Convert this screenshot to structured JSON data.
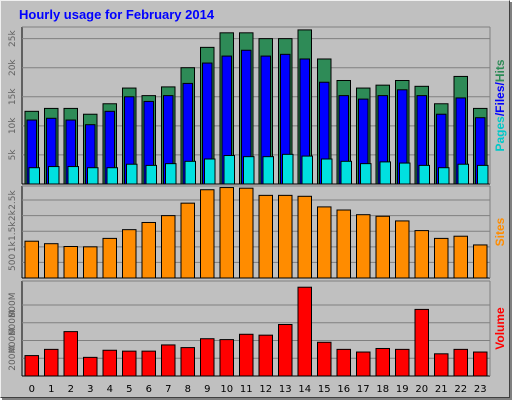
{
  "title": "Hourly usage for February 2014",
  "chart_data": [
    {
      "type": "bar",
      "panel": "hits-files-pages",
      "categories": [
        "0",
        "1",
        "2",
        "3",
        "4",
        "5",
        "6",
        "7",
        "8",
        "9",
        "10",
        "11",
        "12",
        "13",
        "14",
        "15",
        "16",
        "17",
        "18",
        "19",
        "20",
        "21",
        "22",
        "23"
      ],
      "ylim": [
        0,
        27000
      ],
      "yticks": [
        "5k",
        "10k",
        "15k",
        "20k",
        "25k"
      ],
      "legend": [
        "Pages",
        "/",
        "Files",
        "/",
        "Hits"
      ],
      "series": [
        {
          "name": "Hits",
          "color": "#2e8b57",
          "values": [
            12500,
            13000,
            13000,
            12000,
            13800,
            16500,
            15200,
            16700,
            20000,
            23500,
            26000,
            26000,
            25000,
            25000,
            26500,
            21500,
            17800,
            16500,
            17000,
            17800,
            16800,
            13800,
            18500,
            13000
          ]
        },
        {
          "name": "Files",
          "color": "#0000ff",
          "values": [
            11000,
            11300,
            11000,
            10200,
            12500,
            15000,
            14200,
            15200,
            17300,
            20800,
            22000,
            23000,
            22000,
            22300,
            21500,
            17500,
            15200,
            14600,
            15200,
            16200,
            15200,
            12000,
            14800,
            11400
          ]
        },
        {
          "name": "Pages",
          "color": "#00e0e0",
          "values": [
            2800,
            3000,
            3000,
            2800,
            2800,
            3400,
            3200,
            3500,
            3900,
            4300,
            4900,
            4700,
            4700,
            5100,
            4800,
            4300,
            3900,
            3500,
            3800,
            3600,
            3200,
            2800,
            3400,
            3200
          ]
        }
      ]
    },
    {
      "type": "bar",
      "panel": "sites",
      "categories": [
        "0",
        "1",
        "2",
        "3",
        "4",
        "5",
        "6",
        "7",
        "8",
        "9",
        "10",
        "11",
        "12",
        "13",
        "14",
        "15",
        "16",
        "17",
        "18",
        "19",
        "20",
        "21",
        "22",
        "23"
      ],
      "ylim": [
        0,
        2950
      ],
      "yticks": [
        "500",
        "1k",
        "1.5k",
        "2k",
        "2.5k"
      ],
      "legend": [
        "Sites"
      ],
      "series": [
        {
          "name": "Sites",
          "color": "#ff8c00",
          "values": [
            1180,
            1100,
            1010,
            1000,
            1270,
            1550,
            1780,
            2000,
            2400,
            2830,
            2900,
            2880,
            2650,
            2650,
            2620,
            2280,
            2180,
            2030,
            1980,
            1830,
            1520,
            1270,
            1340,
            1060
          ]
        }
      ]
    },
    {
      "type": "bar",
      "panel": "volume",
      "categories": [
        "0",
        "1",
        "2",
        "3",
        "4",
        "5",
        "6",
        "7",
        "8",
        "9",
        "10",
        "11",
        "12",
        "13",
        "14",
        "15",
        "16",
        "17",
        "18",
        "19",
        "20",
        "21",
        "22",
        "23"
      ],
      "ylim": [
        0,
        1070
      ],
      "yticks": [
        "200M",
        "400M",
        "600M",
        "800M"
      ],
      "legend": [
        "Volume"
      ],
      "series": [
        {
          "name": "Volume",
          "color": "#ff0000",
          "values": [
            230,
            300,
            500,
            210,
            290,
            280,
            280,
            350,
            320,
            420,
            410,
            470,
            460,
            580,
            1000,
            380,
            300,
            270,
            310,
            300,
            750,
            250,
            300,
            270
          ]
        }
      ]
    }
  ],
  "x_labels": [
    "0",
    "1",
    "2",
    "3",
    "4",
    "5",
    "6",
    "7",
    "8",
    "9",
    "10",
    "11",
    "12",
    "13",
    "14",
    "15",
    "16",
    "17",
    "18",
    "19",
    "20",
    "21",
    "22",
    "23"
  ],
  "colors": {
    "background": "#c0c0c0",
    "panel": "#c0c0c0",
    "grid": "#808080",
    "title": "#0000ff"
  }
}
